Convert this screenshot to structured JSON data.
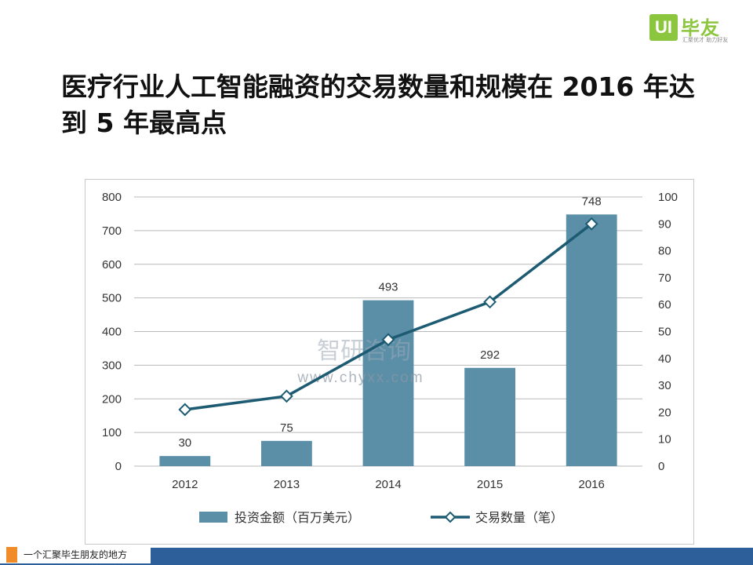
{
  "logo": {
    "box_text": "UI",
    "name": "毕友",
    "slogan": "汇聚优才  助力好友"
  },
  "title": "医疗行业人工智能融资的交易数量和规模在 2016 年达到 5 年最高点",
  "chart_data": {
    "type": "bar",
    "categories": [
      "2012",
      "2013",
      "2014",
      "2015",
      "2016"
    ],
    "series": [
      {
        "name": "投资金额（百万美元）",
        "type": "bar",
        "axis": "left",
        "values": [
          30,
          75,
          493,
          292,
          748
        ],
        "color": "#5b8fa8"
      },
      {
        "name": "交易数量（笔）",
        "type": "line",
        "axis": "right",
        "values": [
          21,
          26,
          47,
          61,
          90
        ],
        "color": "#1d5b73"
      }
    ],
    "data_labels": [
      "30",
      "75",
      "493",
      "292",
      "748"
    ],
    "ylim": [
      0,
      800
    ],
    "y_ticks": [
      "0",
      "100",
      "200",
      "300",
      "400",
      "500",
      "600",
      "700",
      "800"
    ],
    "y2lim": [
      0,
      100
    ],
    "y2_ticks": [
      "0",
      "10",
      "20",
      "30",
      "40",
      "50",
      "60",
      "70",
      "80",
      "90",
      "100"
    ],
    "grid": true,
    "legend": "bottom",
    "watermark": {
      "brand": "智研咨询",
      "url": "www.chyxx.com"
    }
  },
  "footer": {
    "text": "一个汇聚毕生朋友的地方",
    "accent_color": "#f28c28",
    "bar_color": "#2d5f9a"
  }
}
